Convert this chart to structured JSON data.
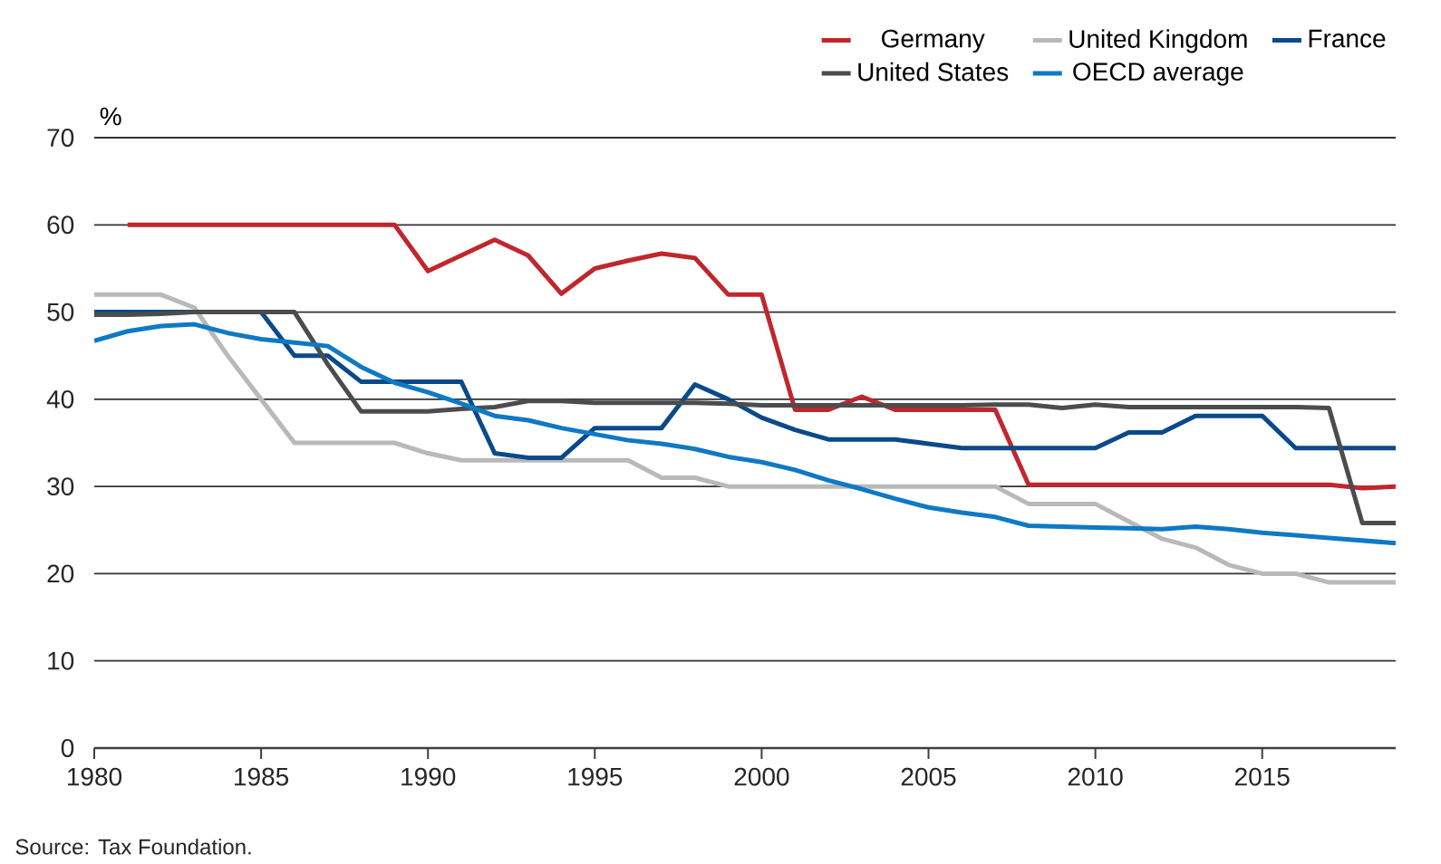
{
  "chart_data": {
    "type": "line",
    "ylabel": "%",
    "x": [
      1980,
      1981,
      1982,
      1983,
      1984,
      1985,
      1986,
      1987,
      1988,
      1989,
      1990,
      1991,
      1992,
      1993,
      1994,
      1995,
      1996,
      1997,
      1998,
      1999,
      2000,
      2001,
      2002,
      2003,
      2004,
      2005,
      2006,
      2007,
      2008,
      2009,
      2010,
      2011,
      2012,
      2013,
      2014,
      2015,
      2016,
      2017,
      2018,
      2019
    ],
    "series": [
      {
        "name": "Germany",
        "color": "#c0272d",
        "values": [
          null,
          60,
          60,
          60,
          60,
          60,
          60,
          60,
          60,
          60,
          54.7,
          56.5,
          58.3,
          56.5,
          52.1,
          55,
          55.9,
          56.7,
          56.2,
          52,
          52,
          38.8,
          38.8,
          40.3,
          38.8,
          38.8,
          38.8,
          38.8,
          30.2,
          30.2,
          30.2,
          30.2,
          30.2,
          30.2,
          30.2,
          30.2,
          30.2,
          30.2,
          29.8,
          30
        ]
      },
      {
        "name": "United Kingdom",
        "color": "#b8b9b9",
        "values": [
          52,
          52,
          52,
          50.5,
          45,
          40,
          35,
          35,
          35,
          35,
          33.8,
          33,
          33,
          33,
          33,
          33,
          33,
          31,
          31,
          30,
          30,
          30,
          30,
          30,
          30,
          30,
          30,
          30,
          28,
          28,
          28,
          26,
          24,
          23,
          21,
          20,
          20,
          19,
          19,
          19
        ]
      },
      {
        "name": "France",
        "color": "#0a4a8a",
        "values": [
          50,
          50,
          50,
          50,
          50,
          50,
          45,
          45,
          42,
          42,
          42,
          42,
          33.8,
          33.3,
          33.3,
          36.7,
          36.7,
          36.7,
          41.7,
          40,
          37.9,
          36.5,
          35.4,
          35.4,
          35.4,
          34.9,
          34.4,
          34.4,
          34.4,
          34.4,
          34.4,
          36.2,
          36.2,
          38.1,
          38.1,
          38.1,
          34.4,
          34.4,
          34.4,
          34.4
        ]
      },
      {
        "name": "United States",
        "color": "#4a4c4e",
        "values": [
          49.7,
          49.7,
          49.8,
          50,
          50,
          50,
          50,
          44,
          38.6,
          38.6,
          38.6,
          38.9,
          39.1,
          39.8,
          39.8,
          39.6,
          39.6,
          39.6,
          39.6,
          39.5,
          39.3,
          39.3,
          39.3,
          39.3,
          39.3,
          39.3,
          39.3,
          39.4,
          39.4,
          39,
          39.4,
          39.1,
          39.1,
          39.1,
          39.1,
          39.1,
          39.1,
          39,
          25.8,
          25.8
        ]
      },
      {
        "name": "OECD average",
        "color": "#0f79c4",
        "values": [
          46.7,
          47.8,
          48.4,
          48.6,
          47.6,
          46.9,
          46.5,
          46.1,
          43.7,
          41.9,
          40.8,
          39.5,
          38.1,
          37.6,
          36.7,
          36,
          35.3,
          34.9,
          34.3,
          33.4,
          32.8,
          31.9,
          30.7,
          29.7,
          28.6,
          27.6,
          27,
          26.5,
          25.5,
          25.4,
          25.3,
          25.2,
          25.1,
          25.4,
          25.1,
          24.7,
          24.4,
          24.1,
          23.8,
          23.5
        ]
      }
    ],
    "xlim": [
      1980,
      2019
    ],
    "xticks": [
      1980,
      1985,
      1990,
      1995,
      2000,
      2005,
      2010,
      2015
    ],
    "ylim": [
      0,
      70
    ],
    "yticks": [
      0,
      10,
      20,
      30,
      40,
      50,
      60,
      70
    ],
    "grid": "y",
    "legend": "top right",
    "marker": "none",
    "line_style": "solid",
    "annotations": [
      "Source: Tax Foundation."
    ]
  }
}
